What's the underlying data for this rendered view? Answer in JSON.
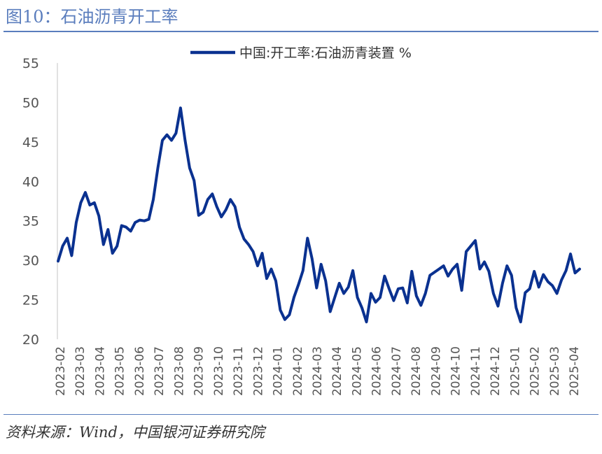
{
  "title": "图10：石油沥青开工率",
  "source": "资料来源：Wind，中国银河证券研究院",
  "colors": {
    "line": "#0a3190",
    "accent": "#5a7dbd"
  },
  "chart_data": {
    "type": "line",
    "title": "石油沥青开工率",
    "ylabel": "%",
    "xlabel": "",
    "ylim": [
      20,
      55
    ],
    "yticks": [
      20,
      25,
      30,
      35,
      40,
      45,
      50,
      55
    ],
    "grid": false,
    "legend_position": "top-center",
    "xticks": [
      "2023-02",
      "2023-03",
      "2023-04",
      "2023-05",
      "2023-06",
      "2023-07",
      "2023-08",
      "2023-09",
      "2023-10",
      "2023-11",
      "2023-12",
      "2024-01",
      "2024-02",
      "2024-03",
      "2024-04",
      "2024-05",
      "2024-06",
      "2024-07",
      "2024-08",
      "2024-09",
      "2024-10",
      "2024-11",
      "2024-12",
      "2025-01",
      "2025-02",
      "2025-03",
      "2025-04"
    ],
    "series": [
      {
        "name": "中国:开工率:石油沥青装置 %",
        "values": [
          29.9,
          31.8,
          32.8,
          30.6,
          34.8,
          37.3,
          38.6,
          37.0,
          37.3,
          35.6,
          32.0,
          33.9,
          30.9,
          31.8,
          34.4,
          34.2,
          33.7,
          34.8,
          35.1,
          35.0,
          35.2,
          37.7,
          41.7,
          45.2,
          45.9,
          45.2,
          46.1,
          49.3,
          45.2,
          41.7,
          40.1,
          35.7,
          36.1,
          37.7,
          38.4,
          36.8,
          35.5,
          36.4,
          37.7,
          36.8,
          34.2,
          32.7,
          32.0,
          31.1,
          29.3,
          30.9,
          27.7,
          28.9,
          27.4,
          23.7,
          22.5,
          23.1,
          25.3,
          26.9,
          28.7,
          32.8,
          30.2,
          26.5,
          29.5,
          27.4,
          23.5,
          25.3,
          27.1,
          25.8,
          26.6,
          28.7,
          25.3,
          24.0,
          22.2,
          25.8,
          24.7,
          25.3,
          28.0,
          26.4,
          24.9,
          26.4,
          26.5,
          24.6,
          28.6,
          25.5,
          24.3,
          25.8,
          28.1,
          28.5,
          28.9,
          29.3,
          28.0,
          28.9,
          29.5,
          26.2,
          31.1,
          31.8,
          32.5,
          28.9,
          29.8,
          28.6,
          25.8,
          24.2,
          27.1,
          29.3,
          28.1,
          24.0,
          22.2,
          25.9,
          26.4,
          28.6,
          26.6,
          28.2,
          27.3,
          26.8,
          25.8,
          27.5,
          28.7,
          30.8,
          28.4,
          28.9
        ]
      }
    ]
  }
}
